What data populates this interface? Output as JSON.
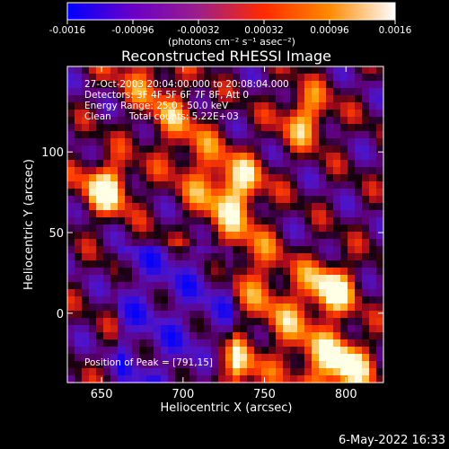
{
  "chart_data": {
    "type": "heatmap",
    "title": "Reconstructed RHESSI Image",
    "xlabel": "Heliocentric X (arcsec)",
    "ylabel": "Heliocentric Y (arcsec)",
    "xlim": [
      629,
      823
    ],
    "ylim": [
      -43,
      153
    ],
    "xticks": [
      650,
      700,
      750,
      800
    ],
    "yticks": [
      0,
      50,
      100
    ],
    "colorbar": {
      "ticks": [
        "-0.0016",
        "-0.00096",
        "-0.00032",
        "0.00032",
        "0.00096",
        "0.0016"
      ],
      "units_label": "(photons cm⁻² s⁻¹ asec⁻²)",
      "range": [
        -0.0016,
        0.0016
      ],
      "colors": [
        "#0000ff",
        "#6a00c8",
        "#9b1f8a",
        "#ff2a00",
        "#ff8a00",
        "#ffffff"
      ]
    },
    "annotations": [
      "27-Oct-2003 20:04:00.000 to 20:08:04.000",
      "Detectors: 3F 4F 5F 6F 7F 8F, Att 0",
      "Energy Range: 25.0 - 50.0 keV",
      "Clean      Total counts: 5.22E+03"
    ],
    "peak_label": "Position of Peak = [791,15]",
    "bright_sources": [
      {
        "x": 653,
        "y": 78,
        "strength": 1.0
      },
      {
        "x": 735,
        "y": 80,
        "strength": 0.7
      },
      {
        "x": 775,
        "y": 122,
        "strength": 0.8
      },
      {
        "x": 790,
        "y": 15,
        "strength": 1.0
      },
      {
        "x": 800,
        "y": -30,
        "strength": 0.9
      },
      {
        "x": 730,
        "y": -35,
        "strength": 0.9
      }
    ]
  },
  "footer": {
    "timestamp": "6-May-2022 16:33"
  }
}
